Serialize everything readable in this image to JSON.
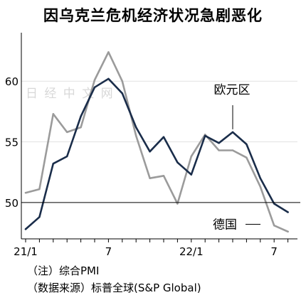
{
  "header": {
    "title": "因乌克兰危机经济状况急剧恶化"
  },
  "footer": {
    "note": "（注）综合PMI",
    "source": "（数据来源）标普全球(S&P Global)"
  },
  "watermark": "日 经 中 文 网",
  "colors": {
    "eurozone": "#1a2d4a",
    "germany": "#9b9b9b",
    "axis": "#000000",
    "watermark": "#d8d8d8"
  },
  "chart_data": {
    "type": "line",
    "title": "因乌克兰危机经济状况急剧恶化",
    "xlabel": "",
    "ylabel": "",
    "ylim": [
      47.0,
      64.0
    ],
    "y_ticks": [
      50,
      55,
      60
    ],
    "reference_line": 50,
    "x_tick_labels": [
      {
        "index": 0,
        "label": "21/1"
      },
      {
        "index": 6,
        "label": "7"
      },
      {
        "index": 12,
        "label": "22/1"
      },
      {
        "index": 18,
        "label": "7"
      }
    ],
    "x": [
      "21/1",
      "21/2",
      "21/3",
      "21/4",
      "21/5",
      "21/6",
      "21/7",
      "21/8",
      "21/9",
      "21/10",
      "21/11",
      "21/12",
      "22/1",
      "22/2",
      "22/3",
      "22/4",
      "22/5",
      "22/6",
      "22/7",
      "22/8"
    ],
    "series": [
      {
        "name": "欧元区",
        "values": [
          47.8,
          48.8,
          53.2,
          53.8,
          57.1,
          59.5,
          60.2,
          59.0,
          56.2,
          54.2,
          55.4,
          53.3,
          52.3,
          55.5,
          54.9,
          55.8,
          54.8,
          52.0,
          49.9,
          49.2
        ]
      },
      {
        "name": "德国",
        "values": [
          50.8,
          51.1,
          57.3,
          55.8,
          56.2,
          60.1,
          62.4,
          60.0,
          55.5,
          52.0,
          52.2,
          49.9,
          53.8,
          55.6,
          54.3,
          54.3,
          53.7,
          51.3,
          48.1,
          47.6
        ]
      }
    ],
    "annotations": [
      {
        "text": "欧元区",
        "series": "欧元区"
      },
      {
        "text": "德国",
        "series": "德国"
      }
    ]
  }
}
